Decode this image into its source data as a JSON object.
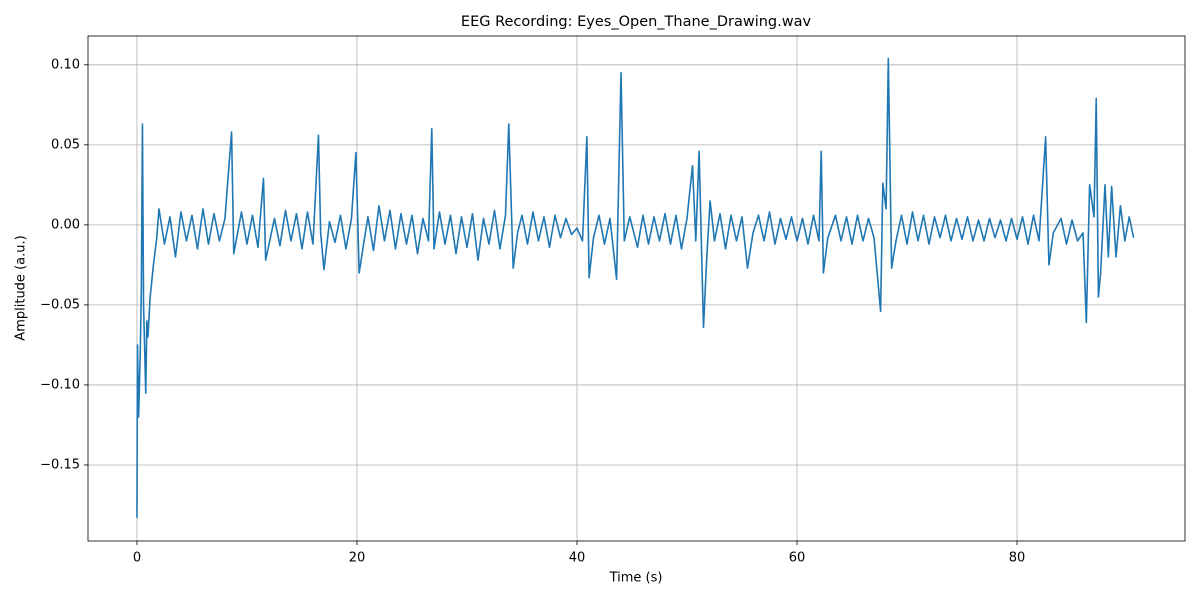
{
  "chart_data": {
    "type": "line",
    "title": "EEG Recording: Eyes_Open_Thane_Drawing.wav",
    "x_label": "Time (s)",
    "y_label": "Amplitude (a.u.)",
    "color": "#1f77b4",
    "grid": true,
    "xlim": [
      -4.45,
      95.27
    ],
    "ylim": [
      -0.1975,
      0.118
    ],
    "xticks": [
      0,
      20,
      40,
      60,
      80
    ],
    "yticks": [
      {
        "value": -0.15,
        "label": "−0.15"
      },
      {
        "value": -0.1,
        "label": "−0.10"
      },
      {
        "value": -0.05,
        "label": "−0.05"
      },
      {
        "value": 0,
        "label": "0.00"
      },
      {
        "value": 0.05,
        "label": "0.05"
      },
      {
        "value": 0.1,
        "label": "0.10"
      }
    ],
    "x": [
      0,
      0.05,
      0.15,
      0.3,
      0.4,
      0.5,
      0.6,
      0.8,
      0.9,
      1.0,
      1.2,
      1.5,
      1.8,
      2.0,
      2.5,
      3.0,
      3.5,
      4.0,
      4.5,
      5.0,
      5.5,
      6.0,
      6.5,
      7.0,
      7.5,
      8.0,
      8.6,
      8.8,
      9.5,
      10,
      10.5,
      11,
      11.5,
      11.7,
      12.5,
      13,
      13.5,
      14,
      14.5,
      15,
      15.5,
      16,
      16.5,
      16.7,
      17,
      17.5,
      18,
      18.5,
      19,
      19.5,
      19.9,
      20.2,
      20.6,
      21,
      21.5,
      22,
      22.5,
      23,
      23.5,
      24,
      24.5,
      25,
      25.5,
      26,
      26.5,
      26.8,
      27,
      27.5,
      28,
      28.5,
      29,
      29.5,
      30,
      30.5,
      31,
      31.5,
      32,
      32.5,
      33,
      33.5,
      33.8,
      34.2,
      34.6,
      35,
      35.5,
      36,
      36.5,
      37,
      37.5,
      38,
      38.5,
      39,
      39.5,
      40,
      40.5,
      40.9,
      41.1,
      41.5,
      42,
      42.5,
      43,
      43.6,
      44,
      44.3,
      44.8,
      45.5,
      46,
      46.5,
      47,
      47.5,
      48,
      48.5,
      49,
      49.5,
      50,
      50.5,
      50.8,
      51.1,
      51.5,
      51.8,
      52.1,
      52.5,
      53,
      53.5,
      54,
      54.5,
      55,
      55.5,
      56,
      56.5,
      57,
      57.5,
      58,
      58.5,
      59,
      59.5,
      60,
      60.5,
      61,
      61.5,
      62,
      62.2,
      62.4,
      62.8,
      63.5,
      64,
      64.5,
      65,
      65.5,
      66,
      66.5,
      67,
      67.6,
      67.8,
      68.1,
      68.3,
      68.6,
      69,
      69.5,
      70,
      70.5,
      71,
      71.5,
      72,
      72.5,
      73,
      73.5,
      74,
      74.5,
      75,
      75.5,
      76,
      76.5,
      77,
      77.5,
      78,
      78.5,
      79,
      79.5,
      80,
      80.5,
      81,
      81.5,
      82,
      82.6,
      82.9,
      83.3,
      84,
      84.5,
      85,
      85.5,
      86,
      86.3,
      86.6,
      87,
      87.2,
      87.4,
      87.6,
      88,
      88.3,
      88.6,
      89,
      89.4,
      89.8,
      90.2,
      90.6
    ],
    "values": [
      -0.183,
      -0.075,
      -0.12,
      -0.08,
      -0.04,
      0.063,
      -0.05,
      -0.105,
      -0.06,
      -0.07,
      -0.045,
      -0.025,
      -0.008,
      0.01,
      -0.012,
      0.005,
      -0.02,
      0.008,
      -0.01,
      0.006,
      -0.015,
      0.01,
      -0.012,
      0.007,
      -0.01,
      0.004,
      0.058,
      -0.018,
      0.008,
      -0.012,
      0.006,
      -0.014,
      0.029,
      -0.022,
      0.004,
      -0.013,
      0.009,
      -0.01,
      0.007,
      -0.015,
      0.008,
      -0.012,
      0.056,
      -0.005,
      -0.028,
      0.002,
      -0.011,
      0.006,
      -0.015,
      0.004,
      0.045,
      -0.03,
      -0.012,
      0.005,
      -0.016,
      0.012,
      -0.01,
      0.009,
      -0.015,
      0.007,
      -0.012,
      0.006,
      -0.018,
      0.004,
      -0.01,
      0.06,
      -0.015,
      0.008,
      -0.012,
      0.006,
      -0.018,
      0.005,
      -0.014,
      0.007,
      -0.022,
      0.004,
      -0.012,
      0.009,
      -0.015,
      0.006,
      0.063,
      -0.027,
      -0.005,
      0.006,
      -0.012,
      0.008,
      -0.01,
      0.005,
      -0.014,
      0.006,
      -0.008,
      0.004,
      -0.006,
      -0.002,
      -0.01,
      0.055,
      -0.033,
      -0.008,
      0.006,
      -0.012,
      0.004,
      -0.034,
      0.095,
      -0.01,
      0.005,
      -0.014,
      0.006,
      -0.012,
      0.005,
      -0.01,
      0.007,
      -0.012,
      0.006,
      -0.015,
      0.004,
      0.037,
      -0.01,
      0.046,
      -0.064,
      -0.02,
      0.015,
      -0.01,
      0.007,
      -0.015,
      0.006,
      -0.01,
      0.005,
      -0.027,
      -0.005,
      0.006,
      -0.01,
      0.008,
      -0.012,
      0.004,
      -0.009,
      0.005,
      -0.01,
      0.004,
      -0.012,
      0.006,
      -0.01,
      0.046,
      -0.03,
      -0.008,
      0.006,
      -0.01,
      0.005,
      -0.012,
      0.006,
      -0.01,
      0.004,
      -0.008,
      -0.054,
      0.026,
      0.01,
      0.104,
      -0.027,
      -0.01,
      0.006,
      -0.012,
      0.008,
      -0.01,
      0.006,
      -0.012,
      0.005,
      -0.008,
      0.006,
      -0.01,
      0.004,
      -0.009,
      0.005,
      -0.01,
      0.003,
      -0.01,
      0.004,
      -0.008,
      0.003,
      -0.01,
      0.004,
      -0.009,
      0.005,
      -0.012,
      0.006,
      -0.01,
      0.055,
      -0.025,
      -0.005,
      0.004,
      -0.012,
      0.003,
      -0.01,
      -0.005,
      -0.061,
      0.025,
      0.005,
      0.079,
      -0.045,
      -0.03,
      0.025,
      -0.02,
      0.024,
      -0.02,
      0.012,
      -0.01,
      0.005,
      -0.008
    ]
  }
}
